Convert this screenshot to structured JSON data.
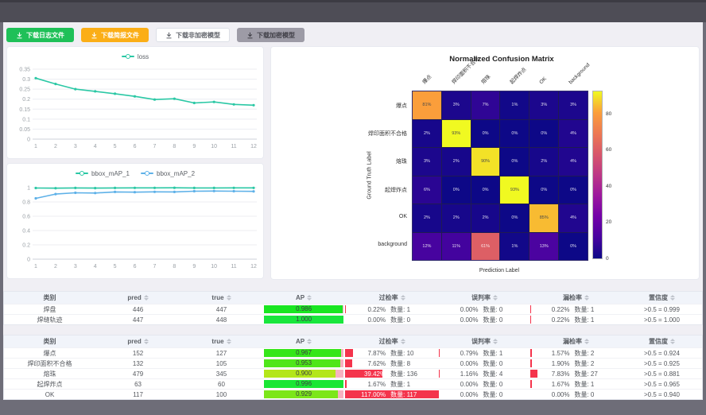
{
  "colors": {
    "page_bg": "#6e6d78",
    "topbar_bg": "#4e4d56",
    "content_bg": "#f0eff4",
    "button_green": "#1fc058",
    "button_orange": "#fbae17",
    "loss_line": "#2bc8a5",
    "map1_line": "#2bc8a5",
    "map2_line": "#5eb1e8",
    "rate_bar_red": "#f4344c",
    "ap_remainder_pink": "#f7b1c0"
  },
  "toolbar": {
    "buttons": [
      {
        "label": "下载日志文件",
        "variant": "green"
      },
      {
        "label": "下载简报文件",
        "variant": "orange"
      },
      {
        "label": "下载非加密模型",
        "variant": "plain"
      },
      {
        "label": "下载加密模型",
        "variant": "gray"
      }
    ]
  },
  "chart_data": [
    {
      "type": "line",
      "title": "",
      "x": [
        1,
        2,
        3,
        4,
        5,
        6,
        7,
        8,
        9,
        10,
        11,
        12
      ],
      "xlabel": "",
      "ylabel": "",
      "ylim": [
        0,
        0.35
      ],
      "yticks": [
        0,
        0.05,
        0.1,
        0.15,
        0.2,
        0.25,
        0.3,
        0.35
      ],
      "legend_position": "top",
      "grid": true,
      "series": [
        {
          "name": "loss",
          "color": "#2bc8a5",
          "values": [
            0.305,
            0.276,
            0.25,
            0.239,
            0.227,
            0.214,
            0.198,
            0.202,
            0.181,
            0.186,
            0.174,
            0.17
          ]
        }
      ]
    },
    {
      "type": "line",
      "title": "",
      "x": [
        1,
        2,
        3,
        4,
        5,
        6,
        7,
        8,
        9,
        10,
        11,
        12
      ],
      "xlabel": "",
      "ylabel": "",
      "ylim": [
        0,
        1
      ],
      "yticks": [
        0,
        0.2,
        0.4,
        0.6,
        0.8,
        1
      ],
      "legend_position": "top",
      "grid": true,
      "series": [
        {
          "name": "bbox_mAP_1",
          "color": "#2bc8a5",
          "values": [
            0.995,
            0.992,
            0.996,
            0.993,
            0.996,
            0.997,
            0.997,
            0.998,
            0.996,
            0.996,
            0.997,
            0.997
          ]
        },
        {
          "name": "bbox_mAP_2",
          "color": "#5eb1e8",
          "values": [
            0.85,
            0.91,
            0.928,
            0.924,
            0.94,
            0.937,
            0.941,
            0.94,
            0.95,
            0.952,
            0.95,
            0.948
          ]
        }
      ]
    },
    {
      "type": "heatmap",
      "title": "Normalized Confusion Matrix",
      "xlabel": "Prediction Label",
      "ylabel": "Ground Truth Label",
      "labels": [
        "爆点",
        "焊印面积不合格",
        "熔珠",
        "起焊炸点",
        "OK",
        "background"
      ],
      "unit": "%",
      "vmax": 93,
      "colormap": "plasma",
      "colorbar_ticks": [
        0,
        20,
        40,
        60,
        80
      ],
      "rows": [
        [
          81,
          3,
          7,
          1,
          3,
          3
        ],
        [
          2,
          93,
          0,
          0,
          0,
          4
        ],
        [
          3,
          2,
          90,
          0,
          2,
          4
        ],
        [
          6,
          0,
          0,
          93,
          0,
          0
        ],
        [
          2,
          2,
          2,
          0,
          85,
          4
        ],
        [
          12,
          11,
          61,
          1,
          13,
          0
        ]
      ]
    }
  ],
  "tables": {
    "quantity_label": "数量:",
    "columns": [
      {
        "label": "类别",
        "w": 13.1,
        "sortable": false,
        "key": "name"
      },
      {
        "label": "pred",
        "w": 12.2,
        "sortable": true,
        "key": "pred"
      },
      {
        "label": "true",
        "w": 11.7,
        "sortable": true,
        "key": "true"
      },
      {
        "label": "AP",
        "w": 11.9,
        "sortable": true,
        "key": "ap"
      },
      {
        "label": "过检率",
        "w": 13.4,
        "sortable": true,
        "key": "over"
      },
      {
        "label": "误判率",
        "w": 13.1,
        "sortable": true,
        "key": "mis"
      },
      {
        "label": "漏检率",
        "w": 13.1,
        "sortable": true,
        "key": "miss"
      },
      {
        "label": "置信度",
        "w": 11.5,
        "sortable": true,
        "key": "conf"
      }
    ],
    "table1": {
      "rows": [
        {
          "name": "焊盘",
          "pred": 446,
          "true": 447,
          "ap": 0.986,
          "over": {
            "pct": 0.22,
            "count": 1
          },
          "mis": {
            "pct": 0.0,
            "count": 0
          },
          "miss": {
            "pct": 0.22,
            "count": 1
          },
          "conf": ">0.5 = 0.999"
        },
        {
          "name": "焊缝轨迹",
          "pred": 447,
          "true": 448,
          "ap": 1.0,
          "over": {
            "pct": 0.0,
            "count": 0
          },
          "mis": {
            "pct": 0.0,
            "count": 0
          },
          "miss": {
            "pct": 0.22,
            "count": 1
          },
          "conf": ">0.5 = 1.000"
        }
      ]
    },
    "table2": {
      "rows": [
        {
          "name": "爆点",
          "pred": 152,
          "true": 127,
          "ap": 0.967,
          "over": {
            "pct": 7.87,
            "count": 10
          },
          "mis": {
            "pct": 0.79,
            "count": 1
          },
          "miss": {
            "pct": 1.57,
            "count": 2
          },
          "conf": ">0.5 = 0.924"
        },
        {
          "name": "焊印面积不合格",
          "pred": 132,
          "true": 105,
          "ap": 0.953,
          "over": {
            "pct": 7.62,
            "count": 8
          },
          "mis": {
            "pct": 0.0,
            "count": 0
          },
          "miss": {
            "pct": 1.9,
            "count": 2
          },
          "conf": ">0.5 = 0.925"
        },
        {
          "name": "熔珠",
          "pred": 479,
          "true": 345,
          "ap": 0.9,
          "over": {
            "pct": 39.42,
            "count": 136
          },
          "mis": {
            "pct": 1.16,
            "count": 4
          },
          "miss": {
            "pct": 7.83,
            "count": 27
          },
          "conf": ">0.5 = 0.881"
        },
        {
          "name": "起焊炸点",
          "pred": 63,
          "true": 60,
          "ap": 0.996,
          "over": {
            "pct": 1.67,
            "count": 1
          },
          "mis": {
            "pct": 0.0,
            "count": 0
          },
          "miss": {
            "pct": 1.67,
            "count": 1
          },
          "conf": ">0.5 = 0.965"
        },
        {
          "name": "OK",
          "pred": 117,
          "true": 100,
          "ap": 0.929,
          "over": {
            "pct": 117.0,
            "count": 117
          },
          "mis": {
            "pct": 0.0,
            "count": 0
          },
          "miss": {
            "pct": 0.0,
            "count": 0
          },
          "conf": ">0.5 = 0.940"
        }
      ]
    }
  }
}
